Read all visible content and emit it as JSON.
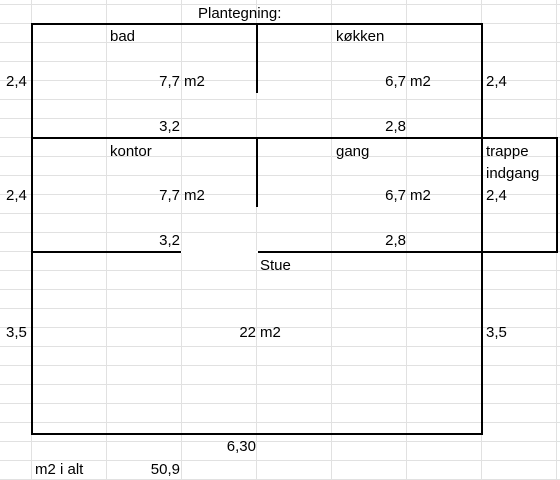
{
  "title": "Plantegning:",
  "rooms": {
    "bad": {
      "name": "bad",
      "area": "7,7",
      "unit": "m2",
      "width": "3,2"
    },
    "kokken": {
      "name": "køkken",
      "area": "6,7",
      "unit": "m2",
      "width": "2,8"
    },
    "kontor": {
      "name": "kontor",
      "area": "7,7",
      "unit": "m2",
      "width": "3,2"
    },
    "gang": {
      "name": "gang",
      "area": "6,7",
      "unit": "m2",
      "width": "2,8"
    },
    "trappe": {
      "name_line1": "trappe",
      "name_line2": "indgang",
      "height": "2,4"
    },
    "stue": {
      "name": "Stue",
      "area": "22",
      "unit": "m2",
      "width": "6,30"
    }
  },
  "heights": {
    "row1_left": "2,4",
    "row1_right": "2,4",
    "row2_left": "2,4",
    "row3_left": "3,5",
    "row3_right": "3,5"
  },
  "total": {
    "label": "m2 i alt",
    "value": "50,9"
  }
}
